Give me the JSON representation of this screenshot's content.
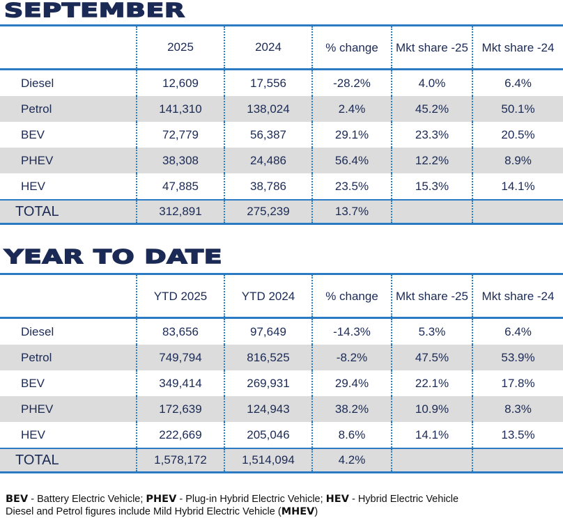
{
  "september": {
    "title": "SEPTEMBER",
    "headers": [
      "",
      "2025",
      "2024",
      "% change",
      "Mkt share -25",
      "Mkt share -24"
    ],
    "rows": [
      [
        "Diesel",
        "12,609",
        "17,556",
        "-28.2%",
        "4.0%",
        "6.4%"
      ],
      [
        "Petrol",
        "141,310",
        "138,024",
        "2.4%",
        "45.2%",
        "50.1%"
      ],
      [
        "BEV",
        "72,779",
        "56,387",
        "29.1%",
        "23.3%",
        "20.5%"
      ],
      [
        "PHEV",
        "38,308",
        "24,486",
        "56.4%",
        "12.2%",
        "8.9%"
      ],
      [
        "HEV",
        "47,885",
        "38,786",
        "23.5%",
        "15.3%",
        "14.1%"
      ]
    ],
    "total": [
      "TOTAL",
      "312,891",
      "275,239",
      "13.7%",
      "",
      ""
    ]
  },
  "ytd": {
    "title": "YEAR TO DATE",
    "headers": [
      "",
      "YTD 2025",
      "YTD 2024",
      "% change",
      "Mkt share -25",
      "Mkt share -24"
    ],
    "rows": [
      [
        "Diesel",
        "83,656",
        "97,649",
        "-14.3%",
        "5.3%",
        "6.4%"
      ],
      [
        "Petrol",
        "749,794",
        "816,525",
        "-8.2%",
        "47.5%",
        "53.9%"
      ],
      [
        "BEV",
        "349,414",
        "269,931",
        "29.4%",
        "22.1%",
        "17.8%"
      ],
      [
        "PHEV",
        "172,639",
        "124,943",
        "38.2%",
        "10.9%",
        "8.3%"
      ],
      [
        "HEV",
        "222,669",
        "205,046",
        "8.6%",
        "14.1%",
        "13.5%"
      ]
    ],
    "total": [
      "TOTAL",
      "1,578,172",
      "1,514,094",
      "4.2%",
      "",
      ""
    ]
  },
  "footer": {
    "line1": [
      [
        "BEV",
        " - Battery Electric Vehicle; "
      ],
      [
        "PHEV",
        " - Plug-in Hybrid Electric Vehicle; "
      ],
      [
        "HEV",
        " - Hybrid Electric Vehicle"
      ]
    ],
    "line2_text": "Diesel and Petrol figures include Mild Hybrid Electric Vehicle (",
    "line2_bold": "MHEV",
    "line2_end": ")"
  }
}
